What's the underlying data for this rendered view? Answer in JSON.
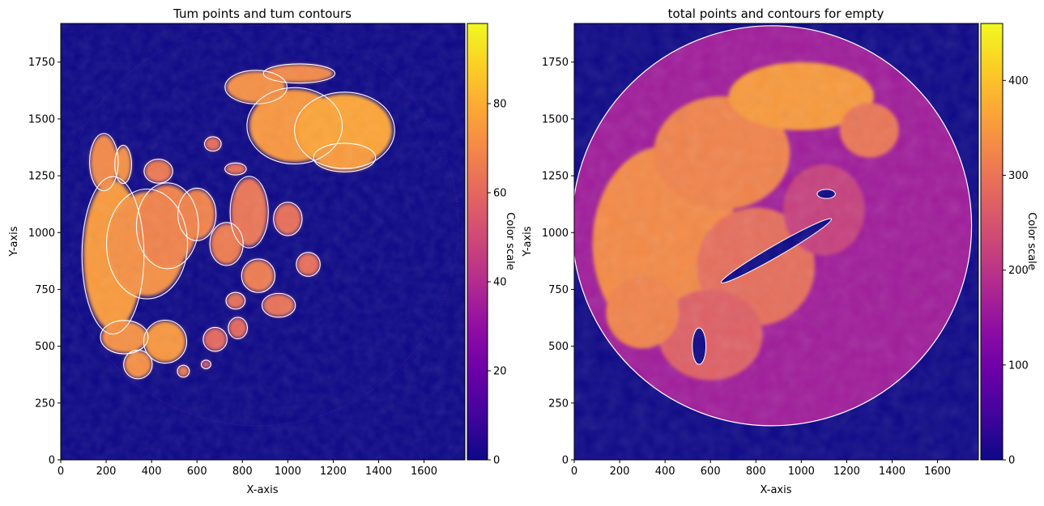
{
  "chart_data": [
    {
      "type": "heatmap",
      "title": "Tum points and tum contours",
      "xlabel": "X-axis",
      "ylabel": "Y-axis",
      "xlim": [
        0,
        1780
      ],
      "ylim": [
        0,
        1920
      ],
      "xticks": [
        0,
        200,
        400,
        600,
        800,
        1000,
        1200,
        1400,
        1600
      ],
      "yticks": [
        0,
        250,
        500,
        750,
        1000,
        1250,
        1500,
        1750
      ],
      "colorbar": {
        "label": "Color scale",
        "range": [
          0,
          98
        ],
        "ticks": [
          0,
          20,
          40,
          60,
          80
        ]
      },
      "colormap": "plasma",
      "background_color": "#0d0887",
      "contour_color": "#ffffff",
      "circle": {
        "cx": 870,
        "cy": 1030,
        "r": 880
      },
      "blobs": [
        {
          "cx": 230,
          "cy": 900,
          "rx": 130,
          "ry": 330,
          "value": 75
        },
        {
          "cx": 380,
          "cy": 950,
          "rx": 170,
          "ry": 230,
          "value": 72
        },
        {
          "cx": 470,
          "cy": 1030,
          "rx": 130,
          "ry": 180,
          "value": 68
        },
        {
          "cx": 190,
          "cy": 1310,
          "rx": 60,
          "ry": 120,
          "value": 70
        },
        {
          "cx": 275,
          "cy": 1300,
          "rx": 35,
          "ry": 80,
          "value": 72
        },
        {
          "cx": 430,
          "cy": 1270,
          "rx": 60,
          "ry": 50,
          "value": 65
        },
        {
          "cx": 600,
          "cy": 1080,
          "rx": 80,
          "ry": 110,
          "value": 68
        },
        {
          "cx": 730,
          "cy": 950,
          "rx": 70,
          "ry": 90,
          "value": 66
        },
        {
          "cx": 830,
          "cy": 1090,
          "rx": 80,
          "ry": 150,
          "value": 64
        },
        {
          "cx": 1000,
          "cy": 1060,
          "rx": 60,
          "ry": 70,
          "value": 62
        },
        {
          "cx": 870,
          "cy": 810,
          "rx": 70,
          "ry": 70,
          "value": 66
        },
        {
          "cx": 960,
          "cy": 680,
          "rx": 70,
          "ry": 50,
          "value": 63
        },
        {
          "cx": 770,
          "cy": 700,
          "rx": 40,
          "ry": 35,
          "value": 62
        },
        {
          "cx": 1090,
          "cy": 860,
          "rx": 50,
          "ry": 50,
          "value": 62
        },
        {
          "cx": 460,
          "cy": 520,
          "rx": 90,
          "ry": 90,
          "value": 74
        },
        {
          "cx": 280,
          "cy": 540,
          "rx": 100,
          "ry": 70,
          "value": 72
        },
        {
          "cx": 340,
          "cy": 420,
          "rx": 60,
          "ry": 60,
          "value": 72
        },
        {
          "cx": 540,
          "cy": 390,
          "rx": 25,
          "ry": 25,
          "value": 65
        },
        {
          "cx": 680,
          "cy": 530,
          "rx": 50,
          "ry": 50,
          "value": 60
        },
        {
          "cx": 780,
          "cy": 580,
          "rx": 40,
          "ry": 45,
          "value": 60
        },
        {
          "cx": 640,
          "cy": 420,
          "rx": 20,
          "ry": 18,
          "value": 55
        },
        {
          "cx": 670,
          "cy": 1390,
          "rx": 35,
          "ry": 30,
          "value": 62
        },
        {
          "cx": 770,
          "cy": 1280,
          "rx": 45,
          "ry": 25,
          "value": 62
        },
        {
          "cx": 1030,
          "cy": 1470,
          "rx": 200,
          "ry": 160,
          "value": 74
        },
        {
          "cx": 1250,
          "cy": 1450,
          "rx": 210,
          "ry": 160,
          "value": 78
        },
        {
          "cx": 860,
          "cy": 1640,
          "rx": 130,
          "ry": 70,
          "value": 72
        },
        {
          "cx": 1050,
          "cy": 1700,
          "rx": 150,
          "ry": 40,
          "value": 70
        },
        {
          "cx": 1250,
          "cy": 1330,
          "rx": 130,
          "ry": 60,
          "value": 75
        }
      ]
    },
    {
      "type": "heatmap",
      "title": "total points and contours for empty",
      "xlabel": "X-axis",
      "ylabel": "Y-axis",
      "xlim": [
        0,
        1780
      ],
      "ylim": [
        0,
        1920
      ],
      "xticks": [
        0,
        200,
        400,
        600,
        800,
        1000,
        1200,
        1400,
        1600
      ],
      "yticks": [
        0,
        250,
        500,
        750,
        1000,
        1250,
        1500,
        1750
      ],
      "colorbar": {
        "label": "Color scale",
        "range": [
          0,
          460
        ],
        "ticks": [
          0,
          100,
          200,
          300,
          400
        ]
      },
      "colormap": "plasma",
      "background_color": "#0d0887",
      "contour_color": "#ffffff",
      "circle": {
        "cx": 870,
        "cy": 1030,
        "r": 880
      },
      "blobs": [
        {
          "cx": 400,
          "cy": 950,
          "rx": 320,
          "ry": 430,
          "value": 330
        },
        {
          "cx": 650,
          "cy": 1350,
          "rx": 300,
          "ry": 250,
          "value": 320
        },
        {
          "cx": 1000,
          "cy": 1600,
          "rx": 320,
          "ry": 150,
          "value": 350
        },
        {
          "cx": 800,
          "cy": 850,
          "rx": 260,
          "ry": 260,
          "value": 290
        },
        {
          "cx": 600,
          "cy": 550,
          "rx": 230,
          "ry": 200,
          "value": 270
        },
        {
          "cx": 1100,
          "cy": 1100,
          "rx": 180,
          "ry": 200,
          "value": 220
        },
        {
          "cx": 300,
          "cy": 650,
          "rx": 160,
          "ry": 160,
          "value": 320
        },
        {
          "cx": 1300,
          "cy": 1450,
          "rx": 130,
          "ry": 120,
          "value": 300
        }
      ],
      "holes": [
        {
          "cx": 550,
          "cy": 500,
          "rx": 30,
          "ry": 80
        },
        {
          "cx": 1110,
          "cy": 1170,
          "rx": 40,
          "ry": 20
        },
        {
          "cx": 890,
          "cy": 920,
          "rx": 280,
          "ry": 25,
          "rot": -30
        }
      ]
    }
  ]
}
